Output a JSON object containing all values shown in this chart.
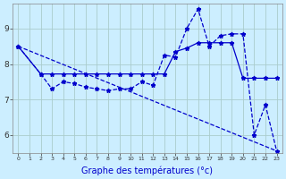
{
  "background_color": "#cceeff",
  "grid_color": "#aacccc",
  "line_color": "#0000cc",
  "xlabel": "Graphe des températures (°c)",
  "xlabel_fontsize": 7,
  "ylim": [
    5.5,
    9.7
  ],
  "xlim": [
    -0.5,
    23.5
  ],
  "yticks": [
    6,
    7,
    8,
    9
  ],
  "xticks": [
    0,
    1,
    2,
    3,
    4,
    5,
    6,
    7,
    8,
    9,
    10,
    11,
    12,
    13,
    14,
    15,
    16,
    17,
    18,
    19,
    20,
    21,
    22,
    23
  ],
  "series1_x": [
    0,
    23
  ],
  "series1_y": [
    8.5,
    5.55
  ],
  "series2_x": [
    0,
    2,
    3,
    4,
    5,
    6,
    7,
    8,
    9,
    10,
    11,
    12,
    13,
    14,
    15,
    16,
    17,
    18,
    19,
    20,
    21,
    22,
    23
  ],
  "series2_y": [
    8.5,
    7.72,
    7.3,
    7.5,
    7.45,
    7.35,
    7.3,
    7.25,
    7.3,
    7.3,
    7.5,
    7.4,
    8.25,
    8.2,
    9.0,
    9.55,
    8.5,
    8.8,
    8.85,
    8.85,
    6.0,
    6.85,
    5.55
  ],
  "series3_x": [
    0,
    2,
    3,
    4,
    5,
    6,
    7,
    8,
    9,
    10,
    11,
    12,
    13,
    14,
    15,
    16,
    17,
    18,
    19,
    20,
    21,
    22,
    23
  ],
  "series3_y": [
    8.5,
    7.72,
    7.72,
    7.72,
    7.72,
    7.72,
    7.72,
    7.72,
    7.72,
    7.72,
    7.72,
    7.72,
    7.72,
    8.35,
    8.45,
    8.6,
    8.6,
    8.6,
    8.6,
    7.6,
    7.6,
    7.6,
    7.6
  ]
}
